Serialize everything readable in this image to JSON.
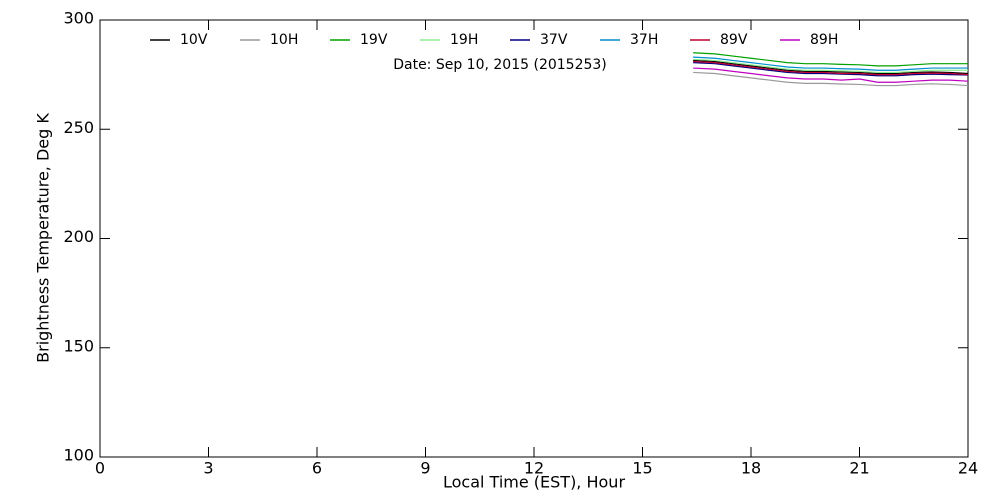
{
  "chart_data": {
    "type": "line",
    "annotation": "Date: Sep 10, 2015 (2015253)",
    "x_label": "Local Time (EST), Hour",
    "y_label": "Brightness Temperature, Deg K",
    "xlim": [
      0,
      24
    ],
    "xticks": [
      0,
      3,
      6,
      9,
      12,
      15,
      18,
      21,
      24
    ],
    "ylim": [
      100,
      300
    ],
    "yticks": [
      100,
      150,
      200,
      250,
      300
    ],
    "x": [
      16.4,
      17,
      17.5,
      18,
      18.5,
      19,
      19.5,
      20,
      20.5,
      21,
      21.5,
      22,
      22.5,
      23,
      23.5,
      24
    ],
    "series": [
      {
        "name": "10V",
        "color": "#000000",
        "values": [
          281.5,
          281,
          280,
          279,
          278,
          277,
          276.5,
          276.5,
          276.2,
          276,
          275.5,
          275.5,
          276,
          276.2,
          276,
          275.5
        ]
      },
      {
        "name": "10H",
        "color": "#9a9a9a",
        "values": [
          276,
          275.5,
          274.5,
          273.5,
          272.5,
          271.5,
          271,
          271,
          270.7,
          270.5,
          270,
          270,
          270.5,
          270.8,
          270.5,
          270
        ]
      },
      {
        "name": "19V",
        "color": "#00a000",
        "values": [
          285,
          284.5,
          283.5,
          282.5,
          281.5,
          280.5,
          280,
          280,
          279.7,
          279.5,
          279,
          279,
          279.5,
          280,
          280,
          280
        ]
      },
      {
        "name": "19H",
        "color": "#90ee90",
        "values": [
          282,
          281.5,
          280.5,
          279.5,
          278.5,
          277.5,
          277,
          277,
          276.7,
          276.5,
          276,
          276,
          276.5,
          277,
          277,
          277
        ]
      },
      {
        "name": "37V",
        "color": "#000080",
        "values": [
          280.5,
          280,
          279,
          278,
          277,
          276,
          275.5,
          275.5,
          275.2,
          275,
          274.5,
          274.5,
          275,
          275.2,
          275,
          274.8
        ]
      },
      {
        "name": "37H",
        "color": "#0090d0",
        "values": [
          283,
          282.5,
          281.5,
          280.5,
          279.5,
          278.5,
          278,
          278,
          277.7,
          277.5,
          277,
          277,
          277.5,
          278,
          278,
          278
        ]
      },
      {
        "name": "89V",
        "color": "#c00030",
        "values": [
          281,
          280.5,
          279.5,
          278.5,
          277.5,
          276.5,
          276,
          276,
          275.5,
          275.5,
          275,
          275,
          275.5,
          275.7,
          275.5,
          275
        ]
      },
      {
        "name": "89H",
        "color": "#c000c0",
        "values": [
          278,
          277.5,
          276.5,
          275.5,
          274.5,
          273.5,
          273,
          273,
          272.5,
          273,
          271.5,
          271.5,
          272,
          272.5,
          272.5,
          272
        ]
      }
    ]
  }
}
